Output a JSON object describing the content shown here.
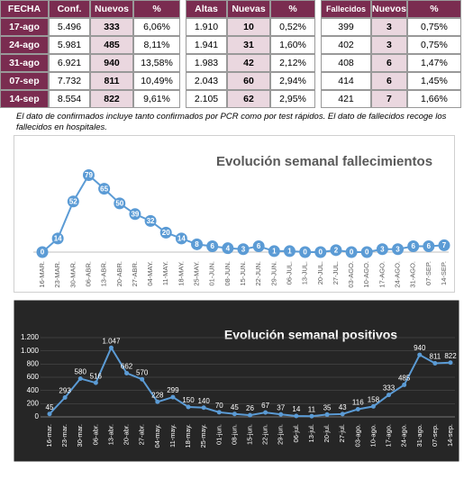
{
  "table": {
    "header": [
      "FECHA",
      "Conf.",
      "Nuevos",
      "%",
      "Altas",
      "Nuevas",
      "%",
      "Fallecidos",
      "Nuevos",
      "%"
    ],
    "rows": [
      [
        "17-ago",
        "5.496",
        "333",
        "6,06%",
        "1.910",
        "10",
        "0,52%",
        "399",
        "3",
        "0,75%"
      ],
      [
        "24-ago",
        "5.981",
        "485",
        "8,11%",
        "1.941",
        "31",
        "1,60%",
        "402",
        "3",
        "0,75%"
      ],
      [
        "31-ago",
        "6.921",
        "940",
        "13,58%",
        "1.983",
        "42",
        "2,12%",
        "408",
        "6",
        "1,47%"
      ],
      [
        "07-sep",
        "7.732",
        "811",
        "10,49%",
        "2.043",
        "60",
        "2,94%",
        "414",
        "6",
        "1,45%"
      ],
      [
        "14-sep",
        "8.554",
        "822",
        "9,61%",
        "2.105",
        "62",
        "2,95%",
        "421",
        "7",
        "1,66%"
      ]
    ]
  },
  "note": "El dato de confirmados incluye tanto confirmados por PCR como por test rápidos. El dato de fallecidos recoge los fallecidos en hospitales.",
  "chart_data": [
    {
      "type": "line",
      "title": "Evolución semanal fallecimientos",
      "color": "#5b9bd5",
      "categories": [
        "16-MAR.",
        "23-MAR.",
        "30-MAR.",
        "06-ABR.",
        "13-ABR.",
        "20-ABR.",
        "27-ABR.",
        "04-MAY.",
        "11-MAY.",
        "18-MAY.",
        "25-MAY.",
        "01-JUN.",
        "08-JUN.",
        "15-JUN.",
        "22-JUN.",
        "29-JUN.",
        "06-JUL.",
        "13-JUL.",
        "20-JUL.",
        "27-JUL.",
        "03-AGO.",
        "10-AGO.",
        "17-AGO.",
        "24-AGO.",
        "31-AGO.",
        "07-SEP.",
        "14-SEP."
      ],
      "values": [
        0,
        14,
        52,
        79,
        65,
        50,
        39,
        32,
        20,
        14,
        8,
        6,
        4,
        3,
        6,
        1,
        1,
        0,
        0,
        2,
        0,
        0,
        3,
        3,
        6,
        6,
        7
      ],
      "ylim": [
        0,
        85
      ]
    },
    {
      "type": "line",
      "title": "Evolución semanal positivos",
      "color": "#5b9bd5",
      "background": "#262626",
      "categories": [
        "16-mar.",
        "23-mar.",
        "30-mar.",
        "06-abr.",
        "13-abr.",
        "20-abr.",
        "27-abr.",
        "04-may.",
        "11-may.",
        "18-may.",
        "25-may.",
        "01-jun.",
        "08-jun.",
        "15-jun.",
        "22-jun.",
        "29-jun.",
        "06-jul.",
        "13-jul.",
        "20-jul.",
        "27-jul.",
        "03-ago.",
        "10-ago.",
        "17-ago.",
        "24-ago.",
        "31-ago.",
        "07-sep.",
        "14-sep."
      ],
      "values": [
        45,
        293,
        580,
        516,
        1047,
        662,
        570,
        228,
        299,
        150,
        140,
        70,
        45,
        26,
        67,
        37,
        14,
        11,
        35,
        43,
        116,
        158,
        333,
        485,
        940,
        811,
        822
      ],
      "value_labels": [
        "45",
        "293",
        "580",
        "516",
        "1.047",
        "662",
        "570",
        "228",
        "299",
        "150",
        "140",
        "70",
        "45",
        "26",
        "67",
        "37",
        "14",
        "11",
        "35",
        "43",
        "116",
        "158",
        "333",
        "485",
        "940",
        "811",
        "822"
      ],
      "ylim": [
        0,
        1200
      ],
      "yticks": [
        0,
        200,
        400,
        600,
        800,
        {
          "value": 1000,
          "label": "1.000"
        },
        {
          "value": 1200,
          "label": "1.200"
        }
      ]
    }
  ]
}
